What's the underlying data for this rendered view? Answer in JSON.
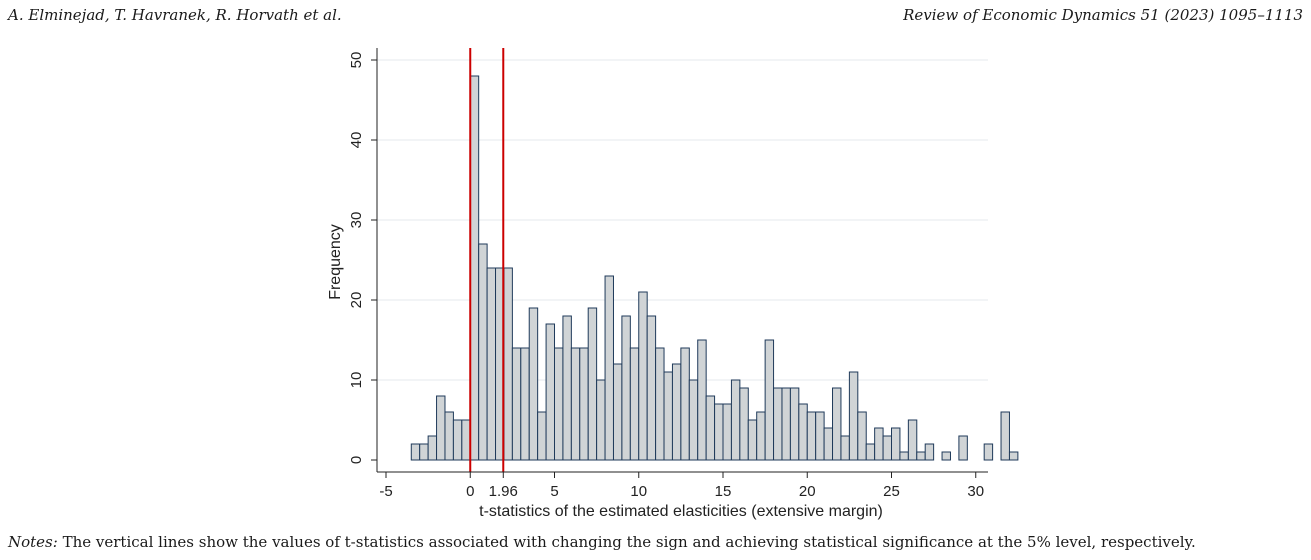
{
  "header": {
    "authors": "A. Elminejad, T. Havranek, R. Horvath et al.",
    "journal": "Review of Economic Dynamics 51 (2023) 1095–1113"
  },
  "notes": {
    "label": "Notes:",
    "text": " The vertical lines show the values of t-statistics associated with changing the sign and achieving statistical significance at the 5% level, respectively."
  },
  "chart_data": {
    "type": "bar",
    "title": "",
    "xlabel": "t-statistics of the estimated elasticities (extensive margin)",
    "ylabel": "Frequency",
    "xlim": [
      -5.5,
      30.6
    ],
    "ylim": [
      0,
      50
    ],
    "x_ticks": [
      -5,
      0,
      1.96,
      5,
      10,
      15,
      20,
      25,
      30
    ],
    "x_tick_labels": [
      "-5",
      "0",
      "1.96",
      "5",
      "10",
      "15",
      "20",
      "25",
      "30"
    ],
    "y_ticks": [
      0,
      10,
      20,
      30,
      40,
      50
    ],
    "grid": "horizontal",
    "bin_width": 0.5,
    "bar_color": "#d0d4d6",
    "bar_edge_color": "#1f3a5a",
    "reference_lines": [
      {
        "x": 0,
        "color": "#cc0000"
      },
      {
        "x": 1.96,
        "color": "#cc0000"
      }
    ],
    "bins": [
      {
        "x": -3.25,
        "value": 2
      },
      {
        "x": -2.75,
        "value": 2
      },
      {
        "x": -2.25,
        "value": 3
      },
      {
        "x": -1.75,
        "value": 8
      },
      {
        "x": -1.25,
        "value": 6
      },
      {
        "x": -0.75,
        "value": 5
      },
      {
        "x": -0.25,
        "value": 5
      },
      {
        "x": 0.25,
        "value": 48
      },
      {
        "x": 0.75,
        "value": 27
      },
      {
        "x": 1.25,
        "value": 24
      },
      {
        "x": 1.75,
        "value": 24
      },
      {
        "x": 2.25,
        "value": 24
      },
      {
        "x": 2.75,
        "value": 14
      },
      {
        "x": 3.25,
        "value": 14
      },
      {
        "x": 3.75,
        "value": 19
      },
      {
        "x": 4.25,
        "value": 6
      },
      {
        "x": 4.75,
        "value": 17
      },
      {
        "x": 5.25,
        "value": 14
      },
      {
        "x": 5.75,
        "value": 18
      },
      {
        "x": 6.25,
        "value": 14
      },
      {
        "x": 6.75,
        "value": 14
      },
      {
        "x": 7.25,
        "value": 19
      },
      {
        "x": 7.75,
        "value": 10
      },
      {
        "x": 8.25,
        "value": 23
      },
      {
        "x": 8.75,
        "value": 12
      },
      {
        "x": 9.25,
        "value": 18
      },
      {
        "x": 9.75,
        "value": 14
      },
      {
        "x": 10.25,
        "value": 21
      },
      {
        "x": 10.75,
        "value": 18
      },
      {
        "x": 11.25,
        "value": 14
      },
      {
        "x": 11.75,
        "value": 11
      },
      {
        "x": 12.25,
        "value": 12
      },
      {
        "x": 12.75,
        "value": 14
      },
      {
        "x": 13.25,
        "value": 10
      },
      {
        "x": 13.75,
        "value": 15
      },
      {
        "x": 14.25,
        "value": 8
      },
      {
        "x": 14.75,
        "value": 7
      },
      {
        "x": 15.25,
        "value": 7
      },
      {
        "x": 15.75,
        "value": 10
      },
      {
        "x": 16.25,
        "value": 9
      },
      {
        "x": 16.75,
        "value": 5
      },
      {
        "x": 17.25,
        "value": 6
      },
      {
        "x": 17.75,
        "value": 15
      },
      {
        "x": 18.25,
        "value": 9
      },
      {
        "x": 18.75,
        "value": 9
      },
      {
        "x": 19.25,
        "value": 9
      },
      {
        "x": 19.75,
        "value": 7
      },
      {
        "x": 20.25,
        "value": 6
      },
      {
        "x": 20.75,
        "value": 6
      },
      {
        "x": 21.25,
        "value": 4
      },
      {
        "x": 21.75,
        "value": 9
      },
      {
        "x": 22.25,
        "value": 3
      },
      {
        "x": 22.75,
        "value": 11
      },
      {
        "x": 23.25,
        "value": 6
      },
      {
        "x": 23.75,
        "value": 2
      },
      {
        "x": 24.25,
        "value": 4
      },
      {
        "x": 24.75,
        "value": 3
      },
      {
        "x": 25.25,
        "value": 4
      },
      {
        "x": 25.75,
        "value": 1
      },
      {
        "x": 26.25,
        "value": 5
      },
      {
        "x": 26.75,
        "value": 1
      },
      {
        "x": 27.25,
        "value": 2
      },
      {
        "x": 28.25,
        "value": 1
      },
      {
        "x": 29.25,
        "value": 3
      },
      {
        "x": 30.75,
        "value": 2
      },
      {
        "x": 31.75,
        "value": 6
      },
      {
        "x": 32.25,
        "value": 1
      }
    ]
  }
}
